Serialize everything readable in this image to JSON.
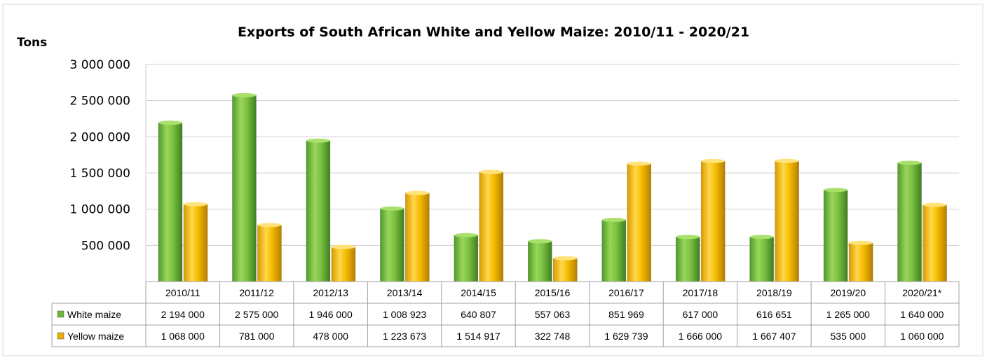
{
  "chart_data": {
    "type": "bar",
    "title": "Exports of South African White and Yellow Maize: 2010/11 - 2020/21",
    "ylabel": "Tons",
    "ylim": [
      0,
      3000000
    ],
    "yticks": [
      "3 000 000",
      "2 500 000",
      "2 000 000",
      "1 500 000",
      "1 000 000",
      "500 000"
    ],
    "ytick_values": [
      3000000,
      2500000,
      2000000,
      1500000,
      1000000,
      500000
    ],
    "grid": true,
    "legend_placement": "data table",
    "categories": [
      "2010/11",
      "2011/12",
      "2012/13",
      "2013/14",
      "2014/15",
      "2015/16",
      "2016/17",
      "2017/18",
      "2018/19",
      "2019/20",
      "2020/21*"
    ],
    "series": [
      {
        "name": "White maize",
        "color": "#7cc242",
        "values": [
          2194000,
          2575000,
          1946000,
          1008923,
          640807,
          557063,
          851969,
          617000,
          616651,
          1265000,
          1640000
        ],
        "labels": [
          "2 194 000",
          "2 575 000",
          "1 946 000",
          "1 008 923",
          "640 807",
          "557 063",
          "851 969",
          "617 000",
          "616 651",
          "1 265 000",
          "1 640 000"
        ]
      },
      {
        "name": "Yellow maize",
        "color": "#f5bc00",
        "values": [
          1068000,
          781000,
          478000,
          1223673,
          1514917,
          322748,
          1629739,
          1666000,
          1667407,
          535000,
          1060000
        ],
        "labels": [
          "1 068 000",
          "781 000",
          "478 000",
          "1 223 673",
          "1 514 917",
          "322 748",
          "1 629 739",
          "1 666 000",
          "1 667 407",
          "535 000",
          "1 060 000"
        ]
      }
    ]
  }
}
